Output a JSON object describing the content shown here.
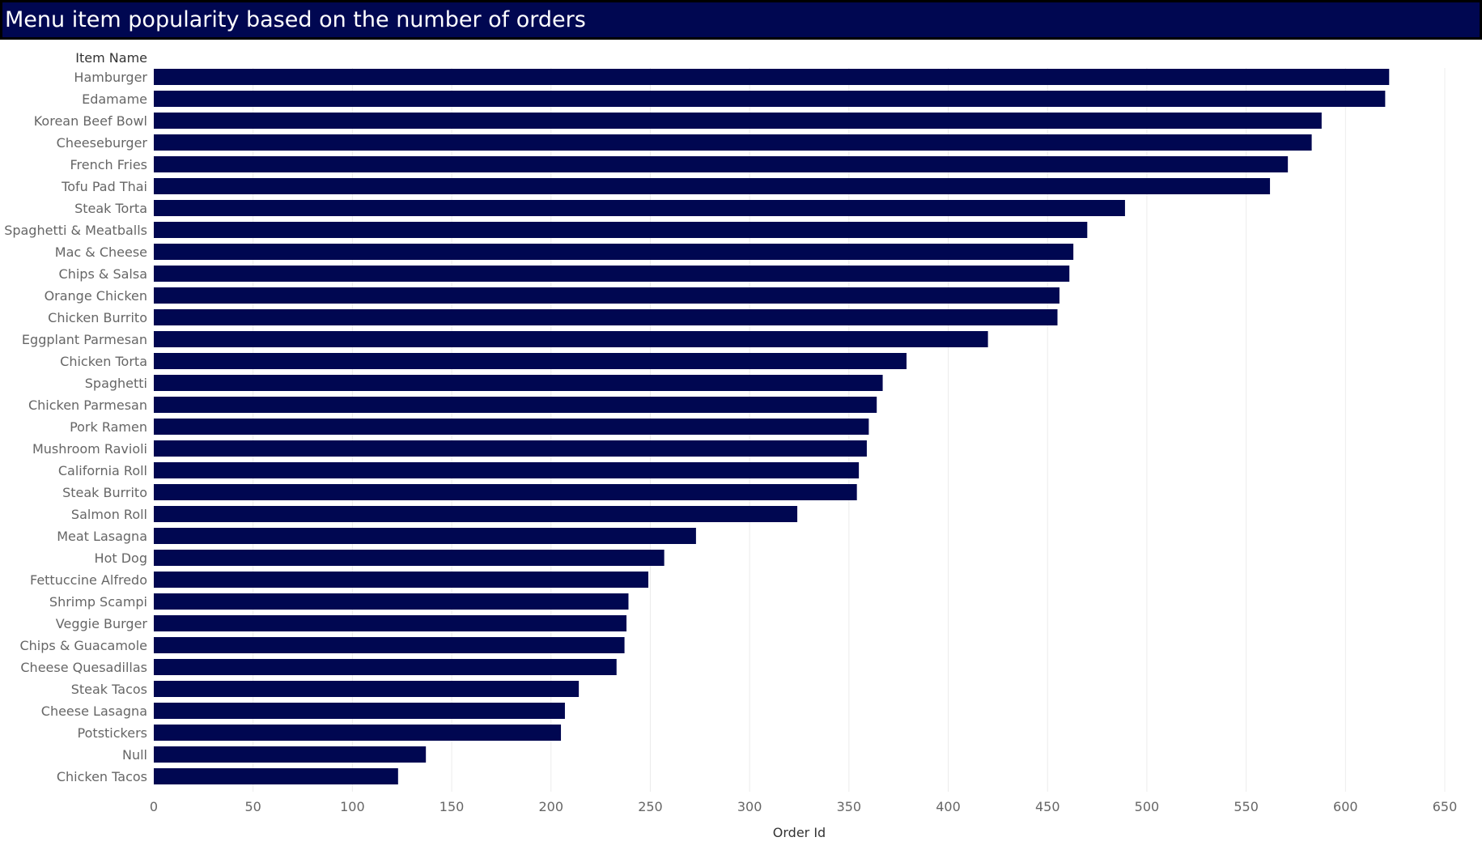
{
  "chart_data": {
    "type": "bar",
    "orientation": "horizontal",
    "title": "Menu item popularity based on the number of orders",
    "ylabel": "Item Name",
    "xlabel": "Order Id",
    "categories": [
      "Hamburger",
      "Edamame",
      "Korean Beef Bowl",
      "Cheeseburger",
      "French Fries",
      "Tofu Pad Thai",
      "Steak Torta",
      "Spaghetti & Meatballs",
      "Mac & Cheese",
      "Chips & Salsa",
      "Orange Chicken",
      "Chicken Burrito",
      "Eggplant Parmesan",
      "Chicken Torta",
      "Spaghetti",
      "Chicken Parmesan",
      "Pork Ramen",
      "Mushroom Ravioli",
      "California Roll",
      "Steak Burrito",
      "Salmon Roll",
      "Meat Lasagna",
      "Hot Dog",
      "Fettuccine Alfredo",
      "Shrimp Scampi",
      "Veggie Burger",
      "Chips & Guacamole",
      "Cheese Quesadillas",
      "Steak Tacos",
      "Cheese Lasagna",
      "Potstickers",
      "Null",
      "Chicken Tacos"
    ],
    "values": [
      622,
      620,
      588,
      583,
      571,
      562,
      489,
      470,
      463,
      461,
      456,
      455,
      420,
      379,
      367,
      364,
      360,
      359,
      355,
      354,
      324,
      273,
      257,
      249,
      239,
      238,
      237,
      233,
      214,
      207,
      205,
      137,
      123
    ],
    "xticks": [
      "0",
      "50",
      "100",
      "150",
      "200",
      "250",
      "300",
      "350",
      "400",
      "450",
      "500",
      "550",
      "600",
      "650"
    ],
    "xlim": [
      0,
      650
    ],
    "grid": true,
    "bar_color": "#000751"
  }
}
